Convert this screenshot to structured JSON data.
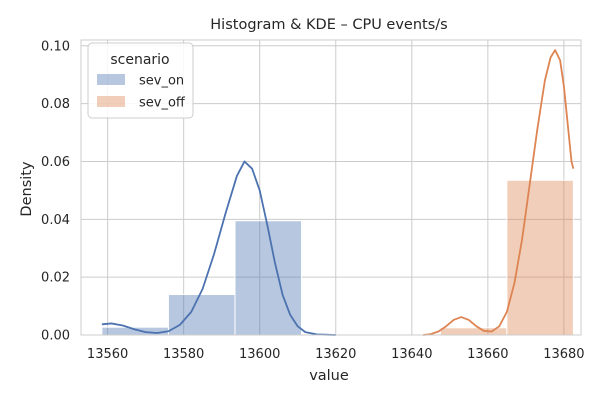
{
  "chart_data": {
    "type": "bar",
    "title": "Histogram & KDE – CPU events/s",
    "xlabel": "value",
    "ylabel": "Density",
    "xlim": [
      13553,
      13684.5
    ],
    "ylim": [
      0,
      0.102
    ],
    "x_ticks": [
      "13560",
      "13580",
      "13600",
      "13620",
      "13640",
      "13660",
      "13680"
    ],
    "y_ticks": [
      "0.00",
      "0.02",
      "0.04",
      "0.06",
      "0.08",
      "0.10"
    ],
    "grid": true,
    "legend": {
      "title": "scenario",
      "position": "top-left"
    },
    "series": [
      {
        "name": "sev_on",
        "color": "#4c72b0",
        "bins": [
          {
            "x0": 13558.5,
            "x1": 13576.0,
            "density": 0.0027
          },
          {
            "x0": 13576.0,
            "x1": 13593.5,
            "density": 0.014
          },
          {
            "x0": 13593.5,
            "x1": 13611.0,
            "density": 0.0395
          }
        ],
        "kde": [
          [
            13558.5,
            0.0037
          ],
          [
            13561.0,
            0.004
          ],
          [
            13564.0,
            0.0033
          ],
          [
            13567.0,
            0.002
          ],
          [
            13570.0,
            0.001
          ],
          [
            13573.0,
            0.0007
          ],
          [
            13576.0,
            0.0013
          ],
          [
            13579.0,
            0.0035
          ],
          [
            13582.0,
            0.008
          ],
          [
            13585.0,
            0.016
          ],
          [
            13588.0,
            0.028
          ],
          [
            13591.0,
            0.042
          ],
          [
            13594.0,
            0.055
          ],
          [
            13596.0,
            0.06
          ],
          [
            13598.0,
            0.0575
          ],
          [
            13600.0,
            0.05
          ],
          [
            13602.0,
            0.038
          ],
          [
            13604.0,
            0.025
          ],
          [
            13606.0,
            0.014
          ],
          [
            13608.0,
            0.007
          ],
          [
            13610.0,
            0.003
          ],
          [
            13612.0,
            0.001
          ],
          [
            13615.0,
            0.0002
          ],
          [
            13620.0,
            0.0
          ]
        ]
      },
      {
        "name": "sev_off",
        "color": "#dd8452",
        "bins": [
          {
            "x0": 13647.5,
            "x1": 13665.0,
            "density": 0.0025
          },
          {
            "x0": 13665.0,
            "x1": 13682.5,
            "density": 0.0535
          }
        ],
        "kde": [
          [
            13643.0,
            0.0
          ],
          [
            13645.0,
            0.0003
          ],
          [
            13647.0,
            0.0012
          ],
          [
            13649.0,
            0.003
          ],
          [
            13651.0,
            0.0052
          ],
          [
            13653.0,
            0.0062
          ],
          [
            13655.0,
            0.0052
          ],
          [
            13657.0,
            0.003
          ],
          [
            13659.0,
            0.0014
          ],
          [
            13661.0,
            0.0012
          ],
          [
            13663.0,
            0.003
          ],
          [
            13665.0,
            0.008
          ],
          [
            13667.0,
            0.018
          ],
          [
            13669.0,
            0.033
          ],
          [
            13671.0,
            0.052
          ],
          [
            13673.0,
            0.071
          ],
          [
            13675.0,
            0.088
          ],
          [
            13676.5,
            0.096
          ],
          [
            13677.7,
            0.0985
          ],
          [
            13679.0,
            0.095
          ],
          [
            13680.0,
            0.086
          ],
          [
            13681.0,
            0.073
          ],
          [
            13682.0,
            0.06
          ],
          [
            13682.5,
            0.0575
          ]
        ]
      }
    ]
  }
}
